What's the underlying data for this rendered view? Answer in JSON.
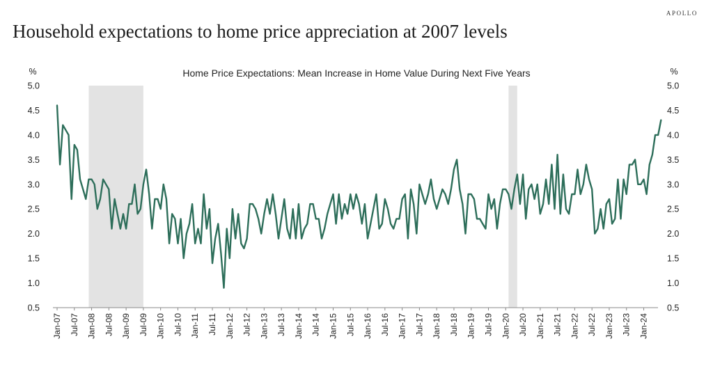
{
  "brand": "APOLLO",
  "headline": "Household expectations to home price appreciation at 2007 levels",
  "colors": {
    "line": "#2d6e5a",
    "recession": "#e3e3e3",
    "axis": "#888888"
  },
  "chart_data": {
    "type": "line",
    "title": "Home Price Expectations: Mean Increase in Home Value During Next Five Years",
    "ylabel_left": "%",
    "ylabel_right": "%",
    "ylim": [
      0.5,
      5.0
    ],
    "yticks": [
      "0.5",
      "1.0",
      "1.5",
      "2.0",
      "2.5",
      "3.0",
      "3.5",
      "4.0",
      "4.5",
      "5.0"
    ],
    "x_range": [
      "2007-01",
      "2024-04"
    ],
    "xticks": [
      "Jan-07",
      "Jul-07",
      "Jan-08",
      "Jul-08",
      "Jan-09",
      "Jul-09",
      "Jan-10",
      "Jul-10",
      "Jan-11",
      "Jul-11",
      "Jan-12",
      "Jul-12",
      "Jan-13",
      "Jul-13",
      "Jan-14",
      "Jul-14",
      "Jan-15",
      "Jul-15",
      "Jan-16",
      "Jul-16",
      "Jan-17",
      "Jul-17",
      "Jan-18",
      "Jul-18",
      "Jan-19",
      "Jul-19",
      "Jan-20",
      "Jul-20",
      "Jan-21",
      "Jul-21",
      "Jan-22",
      "Jul-22",
      "Jan-23",
      "Jul-23",
      "Jan-24"
    ],
    "recessions": [
      {
        "start": "2007-12",
        "end": "2009-06"
      },
      {
        "start": "2020-02",
        "end": "2020-04"
      }
    ],
    "grid": false,
    "legend": "none",
    "series": [
      {
        "points": [
          [
            "2007-01",
            4.6
          ],
          [
            "2007-02",
            3.4
          ],
          [
            "2007-03",
            4.2
          ],
          [
            "2007-04",
            4.1
          ],
          [
            "2007-05",
            4.0
          ],
          [
            "2007-06",
            2.7
          ],
          [
            "2007-07",
            3.8
          ],
          [
            "2007-08",
            3.7
          ],
          [
            "2007-09",
            3.1
          ],
          [
            "2007-10",
            2.9
          ],
          [
            "2007-11",
            2.7
          ],
          [
            "2007-12",
            3.1
          ],
          [
            "2008-01",
            3.1
          ],
          [
            "2008-02",
            3.0
          ],
          [
            "2008-03",
            2.5
          ],
          [
            "2008-04",
            2.7
          ],
          [
            "2008-05",
            3.1
          ],
          [
            "2008-06",
            3.0
          ],
          [
            "2008-07",
            2.9
          ],
          [
            "2008-08",
            2.1
          ],
          [
            "2008-09",
            2.7
          ],
          [
            "2008-10",
            2.4
          ],
          [
            "2008-11",
            2.1
          ],
          [
            "2008-12",
            2.4
          ],
          [
            "2009-01",
            2.1
          ],
          [
            "2009-02",
            2.6
          ],
          [
            "2009-03",
            2.6
          ],
          [
            "2009-04",
            3.0
          ],
          [
            "2009-05",
            2.4
          ],
          [
            "2009-06",
            2.5
          ],
          [
            "2009-07",
            3.0
          ],
          [
            "2009-08",
            3.3
          ],
          [
            "2009-09",
            2.8
          ],
          [
            "2009-10",
            2.1
          ],
          [
            "2009-11",
            2.7
          ],
          [
            "2009-12",
            2.7
          ],
          [
            "2010-01",
            2.5
          ],
          [
            "2010-02",
            3.0
          ],
          [
            "2010-03",
            2.7
          ],
          [
            "2010-04",
            1.8
          ],
          [
            "2010-05",
            2.4
          ],
          [
            "2010-06",
            2.3
          ],
          [
            "2010-07",
            1.8
          ],
          [
            "2010-08",
            2.3
          ],
          [
            "2010-09",
            1.5
          ],
          [
            "2010-10",
            2.0
          ],
          [
            "2010-11",
            2.2
          ],
          [
            "2010-12",
            2.6
          ],
          [
            "2011-01",
            1.8
          ],
          [
            "2011-02",
            2.1
          ],
          [
            "2011-03",
            1.8
          ],
          [
            "2011-04",
            2.8
          ],
          [
            "2011-05",
            2.1
          ],
          [
            "2011-06",
            2.5
          ],
          [
            "2011-07",
            1.4
          ],
          [
            "2011-08",
            1.9
          ],
          [
            "2011-09",
            2.2
          ],
          [
            "2011-10",
            1.6
          ],
          [
            "2011-11",
            0.9
          ],
          [
            "2011-12",
            2.1
          ],
          [
            "2012-01",
            1.5
          ],
          [
            "2012-02",
            2.5
          ],
          [
            "2012-03",
            1.9
          ],
          [
            "2012-04",
            2.4
          ],
          [
            "2012-05",
            1.8
          ],
          [
            "2012-06",
            1.7
          ],
          [
            "2012-07",
            1.9
          ],
          [
            "2012-08",
            2.6
          ],
          [
            "2012-09",
            2.6
          ],
          [
            "2012-10",
            2.5
          ],
          [
            "2012-11",
            2.3
          ],
          [
            "2012-12",
            2.0
          ],
          [
            "2013-01",
            2.4
          ],
          [
            "2013-02",
            2.7
          ],
          [
            "2013-03",
            2.4
          ],
          [
            "2013-04",
            2.8
          ],
          [
            "2013-05",
            2.4
          ],
          [
            "2013-06",
            1.9
          ],
          [
            "2013-07",
            2.3
          ],
          [
            "2013-08",
            2.7
          ],
          [
            "2013-09",
            2.1
          ],
          [
            "2013-10",
            1.9
          ],
          [
            "2013-11",
            2.5
          ],
          [
            "2013-12",
            1.9
          ],
          [
            "2014-01",
            2.6
          ],
          [
            "2014-02",
            1.9
          ],
          [
            "2014-03",
            2.1
          ],
          [
            "2014-04",
            2.2
          ],
          [
            "2014-05",
            2.6
          ],
          [
            "2014-06",
            2.6
          ],
          [
            "2014-07",
            2.3
          ],
          [
            "2014-08",
            2.3
          ],
          [
            "2014-09",
            1.9
          ],
          [
            "2014-10",
            2.1
          ],
          [
            "2014-11",
            2.4
          ],
          [
            "2014-12",
            2.6
          ],
          [
            "2015-01",
            2.8
          ],
          [
            "2015-02",
            2.2
          ],
          [
            "2015-03",
            2.8
          ],
          [
            "2015-04",
            2.3
          ],
          [
            "2015-05",
            2.6
          ],
          [
            "2015-06",
            2.4
          ],
          [
            "2015-07",
            2.8
          ],
          [
            "2015-08",
            2.5
          ],
          [
            "2015-09",
            2.8
          ],
          [
            "2015-10",
            2.6
          ],
          [
            "2015-11",
            2.2
          ],
          [
            "2015-12",
            2.6
          ],
          [
            "2016-01",
            1.9
          ],
          [
            "2016-02",
            2.2
          ],
          [
            "2016-03",
            2.5
          ],
          [
            "2016-04",
            2.8
          ],
          [
            "2016-05",
            2.1
          ],
          [
            "2016-06",
            2.2
          ],
          [
            "2016-07",
            2.7
          ],
          [
            "2016-08",
            2.5
          ],
          [
            "2016-09",
            2.2
          ],
          [
            "2016-10",
            2.1
          ],
          [
            "2016-11",
            2.3
          ],
          [
            "2016-12",
            2.3
          ],
          [
            "2017-01",
            2.7
          ],
          [
            "2017-02",
            2.8
          ],
          [
            "2017-03",
            1.9
          ],
          [
            "2017-04",
            2.9
          ],
          [
            "2017-05",
            2.6
          ],
          [
            "2017-06",
            2.0
          ],
          [
            "2017-07",
            3.0
          ],
          [
            "2017-08",
            2.8
          ],
          [
            "2017-09",
            2.6
          ],
          [
            "2017-10",
            2.8
          ],
          [
            "2017-11",
            3.1
          ],
          [
            "2017-12",
            2.7
          ],
          [
            "2018-01",
            2.5
          ],
          [
            "2018-02",
            2.7
          ],
          [
            "2018-03",
            2.9
          ],
          [
            "2018-04",
            2.8
          ],
          [
            "2018-05",
            2.6
          ],
          [
            "2018-06",
            2.9
          ],
          [
            "2018-07",
            3.3
          ],
          [
            "2018-08",
            3.5
          ],
          [
            "2018-09",
            2.9
          ],
          [
            "2018-10",
            2.6
          ],
          [
            "2018-11",
            2.0
          ],
          [
            "2018-12",
            2.8
          ],
          [
            "2019-01",
            2.8
          ],
          [
            "2019-02",
            2.7
          ],
          [
            "2019-03",
            2.3
          ],
          [
            "2019-04",
            2.3
          ],
          [
            "2019-05",
            2.2
          ],
          [
            "2019-06",
            2.1
          ],
          [
            "2019-07",
            2.8
          ],
          [
            "2019-08",
            2.5
          ],
          [
            "2019-09",
            2.7
          ],
          [
            "2019-10",
            2.1
          ],
          [
            "2019-11",
            2.6
          ],
          [
            "2019-12",
            2.9
          ],
          [
            "2020-01",
            2.9
          ],
          [
            "2020-02",
            2.8
          ],
          [
            "2020-03",
            2.5
          ],
          [
            "2020-04",
            2.9
          ],
          [
            "2020-05",
            3.2
          ],
          [
            "2020-06",
            2.6
          ],
          [
            "2020-07",
            3.2
          ],
          [
            "2020-08",
            2.3
          ],
          [
            "2020-09",
            2.9
          ],
          [
            "2020-10",
            3.0
          ],
          [
            "2020-11",
            2.7
          ],
          [
            "2020-12",
            3.0
          ],
          [
            "2021-01",
            2.4
          ],
          [
            "2021-02",
            2.6
          ],
          [
            "2021-03",
            3.1
          ],
          [
            "2021-04",
            2.6
          ],
          [
            "2021-05",
            3.4
          ],
          [
            "2021-06",
            2.5
          ],
          [
            "2021-07",
            3.6
          ],
          [
            "2021-08",
            2.4
          ],
          [
            "2021-09",
            3.2
          ],
          [
            "2021-10",
            2.5
          ],
          [
            "2021-11",
            2.4
          ],
          [
            "2021-12",
            2.8
          ],
          [
            "2022-01",
            2.8
          ],
          [
            "2022-02",
            3.3
          ],
          [
            "2022-03",
            2.8
          ],
          [
            "2022-04",
            3.0
          ],
          [
            "2022-05",
            3.4
          ],
          [
            "2022-06",
            3.1
          ],
          [
            "2022-07",
            2.9
          ],
          [
            "2022-08",
            2.0
          ],
          [
            "2022-09",
            2.1
          ],
          [
            "2022-10",
            2.5
          ],
          [
            "2022-11",
            2.1
          ],
          [
            "2022-12",
            2.6
          ],
          [
            "2023-01",
            2.7
          ],
          [
            "2023-02",
            2.2
          ],
          [
            "2023-03",
            2.3
          ],
          [
            "2023-04",
            3.1
          ],
          [
            "2023-05",
            2.3
          ],
          [
            "2023-06",
            3.1
          ],
          [
            "2023-07",
            2.8
          ],
          [
            "2023-08",
            3.4
          ],
          [
            "2023-09",
            3.4
          ],
          [
            "2023-10",
            3.5
          ],
          [
            "2023-11",
            3.0
          ],
          [
            "2023-12",
            3.0
          ],
          [
            "2024-01",
            3.1
          ],
          [
            "2024-02",
            2.8
          ],
          [
            "2024-03",
            3.4
          ],
          [
            "2024-04",
            3.6
          ],
          [
            "2024-05",
            4.0
          ],
          [
            "2024-06",
            4.0
          ],
          [
            "2024-07",
            4.3
          ]
        ]
      }
    ]
  }
}
